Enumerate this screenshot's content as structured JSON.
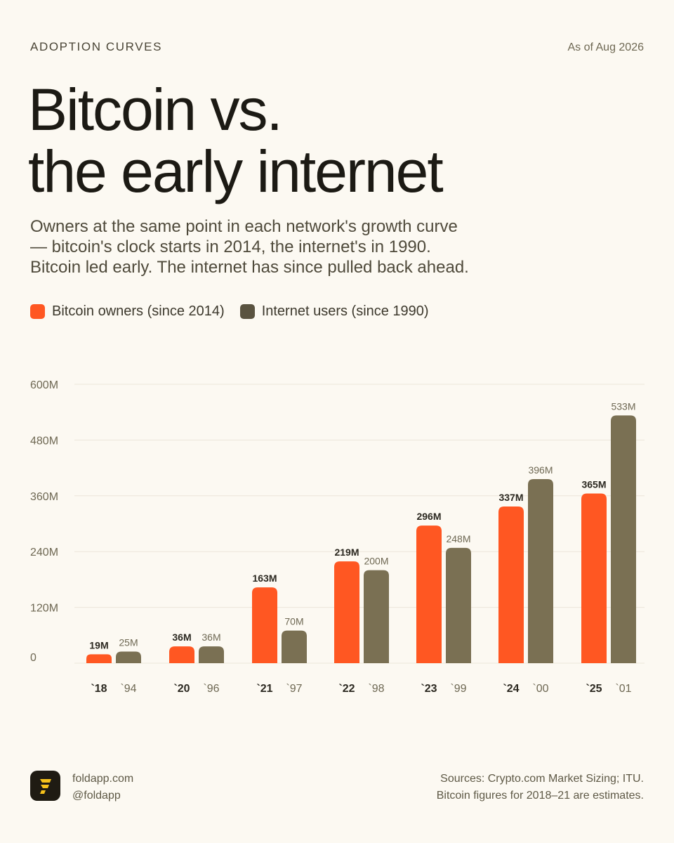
{
  "header": {
    "eyebrow": "ADOPTION CURVES",
    "as_of": "As of Aug 2026"
  },
  "headline": {
    "line1": "Bitcoin vs.",
    "line2": "the early internet"
  },
  "subtitle": {
    "line1": "Owners at the same point in each network's growth curve",
    "line2": "— bitcoin's clock starts in 2014, the internet's in 1990.",
    "line3": "Bitcoin led early. The internet has since pulled back ahead."
  },
  "colors": {
    "bitcoin": "#ff5722",
    "internet": "#7a7053",
    "legend_internet": "#5a5340",
    "grid": "#ebe6da",
    "tick_text": "#6e6853"
  },
  "chart_data": {
    "type": "bar",
    "title": "",
    "xlabel": "",
    "ylabel": "",
    "ylim": [
      0,
      600
    ],
    "yticks": [
      0,
      120,
      240,
      360,
      480,
      600
    ],
    "ytick_labels": [
      "0",
      "120M",
      "240M",
      "360M",
      "480M",
      "600M"
    ],
    "grid": true,
    "legend_position": "top-left",
    "groups": [
      {
        "bitcoin_year": "`18",
        "internet_year": "`94"
      },
      {
        "bitcoin_year": "`20",
        "internet_year": "`96"
      },
      {
        "bitcoin_year": "`21",
        "internet_year": "`97"
      },
      {
        "bitcoin_year": "`22",
        "internet_year": "`98"
      },
      {
        "bitcoin_year": "`23",
        "internet_year": "`99"
      },
      {
        "bitcoin_year": "`24",
        "internet_year": "`00"
      },
      {
        "bitcoin_year": "`25",
        "internet_year": "`01"
      }
    ],
    "series": [
      {
        "name": "Bitcoin owners (since 2014)",
        "key": "bitcoin",
        "values": [
          19,
          36,
          163,
          219,
          296,
          337,
          365
        ],
        "labels": [
          "19M",
          "36M",
          "163M",
          "219M",
          "296M",
          "337M",
          "365M"
        ]
      },
      {
        "name": "Internet users (since 1990)",
        "key": "internet",
        "values": [
          25,
          36,
          70,
          200,
          248,
          396,
          533
        ],
        "labels": [
          "25M",
          "36M",
          "70M",
          "200M",
          "248M",
          "396M",
          "533M"
        ]
      }
    ]
  },
  "footer": {
    "site": "foldapp.com",
    "handle": "@foldapp",
    "sources_line1": "Sources: Crypto.com Market Sizing; ITU.",
    "sources_line2": "Bitcoin figures for 2018–21 are estimates."
  }
}
